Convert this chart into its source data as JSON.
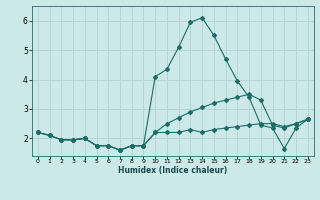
{
  "xlabel": "Humidex (Indice chaleur)",
  "background_color": "#cce8e8",
  "grid_color": "#b8d4d4",
  "line_color": "#1a6e64",
  "x_values": [
    0,
    1,
    2,
    3,
    4,
    5,
    6,
    7,
    8,
    9,
    10,
    11,
    12,
    13,
    14,
    15,
    16,
    17,
    18,
    19,
    20,
    21,
    22,
    23
  ],
  "line1": [
    2.2,
    2.1,
    1.95,
    1.95,
    2.0,
    1.75,
    1.75,
    1.6,
    1.75,
    1.75,
    2.2,
    2.2,
    2.2,
    2.3,
    2.2,
    2.3,
    2.35,
    2.4,
    2.45,
    2.5,
    2.5,
    2.4,
    2.5,
    2.65
  ],
  "line2": [
    2.2,
    2.1,
    1.95,
    1.95,
    2.0,
    1.75,
    1.75,
    1.6,
    1.75,
    1.75,
    4.1,
    4.35,
    5.1,
    5.95,
    6.1,
    5.5,
    4.7,
    3.95,
    3.4,
    2.45,
    2.35,
    1.65,
    2.35,
    2.65
  ],
  "line3": [
    2.2,
    2.1,
    1.95,
    1.95,
    2.0,
    1.75,
    1.75,
    1.6,
    1.75,
    1.75,
    2.2,
    2.5,
    2.7,
    2.9,
    3.05,
    3.2,
    3.3,
    3.4,
    3.5,
    3.3,
    2.45,
    2.35,
    2.5,
    2.65
  ],
  "xlim": [
    -0.5,
    23.5
  ],
  "ylim": [
    1.4,
    6.5
  ],
  "yticks": [
    2,
    3,
    4,
    5,
    6
  ],
  "xticks": [
    0,
    1,
    2,
    3,
    4,
    5,
    6,
    7,
    8,
    9,
    10,
    11,
    12,
    13,
    14,
    15,
    16,
    17,
    18,
    19,
    20,
    21,
    22,
    23
  ]
}
